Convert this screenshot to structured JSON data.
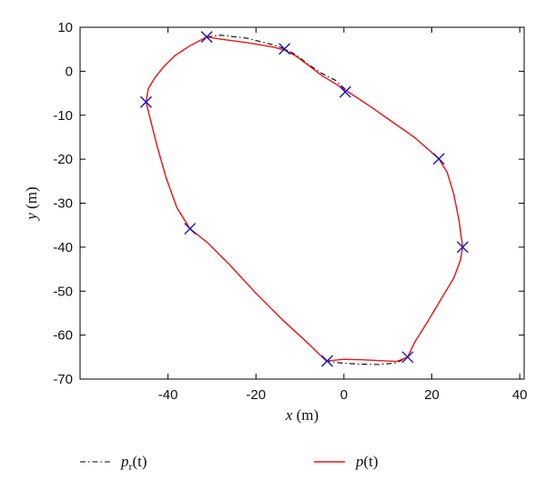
{
  "chart_data": {
    "type": "line",
    "xlabel_var": "x",
    "xlabel_unit": " (m)",
    "ylabel_var": "y",
    "ylabel_unit": " (m)",
    "xlim": [
      -60,
      41
    ],
    "ylim": [
      -70,
      10
    ],
    "xticks": [
      -40,
      -20,
      0,
      20,
      40
    ],
    "yticks": [
      10,
      0,
      -10,
      -20,
      -30,
      -40,
      -50,
      -60,
      -70
    ],
    "grid": false,
    "legend_position": "bottom",
    "series": [
      {
        "name": "p_r(t)",
        "name_main": "p",
        "name_sub": "r",
        "name_tail": "(t)",
        "style": "dash-dot",
        "color": "#000000",
        "x": [
          -31.2,
          -28,
          -22,
          -16,
          -13.5,
          -11,
          -8,
          -5,
          -2,
          1,
          6,
          11,
          16,
          21.6,
          23.5,
          25,
          26.2,
          27,
          26.5,
          25,
          22,
          19,
          16,
          14.5,
          12,
          8,
          4,
          0,
          -4,
          -8,
          -14,
          -20,
          -26,
          -31,
          -35,
          -38,
          -40.5,
          -42.5,
          -44,
          -45,
          -44.5,
          -43,
          -41,
          -38.5,
          -35,
          -31.2
        ],
        "y": [
          7.8,
          8.2,
          7.5,
          6,
          5.1,
          3.8,
          1.5,
          -0.5,
          -2,
          -4.7,
          -8,
          -11.5,
          -15,
          -19.9,
          -23,
          -28,
          -34,
          -40,
          -43,
          -47,
          -52,
          -57,
          -61.8,
          -65,
          -66.3,
          -66.7,
          -66.6,
          -66.4,
          -65.9,
          -62,
          -56.5,
          -50.5,
          -44,
          -39,
          -35.8,
          -31,
          -24,
          -17,
          -11,
          -7,
          -4,
          -1.5,
          1,
          3.5,
          5.8,
          7.8
        ]
      },
      {
        "name": "p(t)",
        "name_main": "p",
        "name_sub": "",
        "name_tail": "(t)",
        "style": "solid",
        "color": "#e8161b",
        "x": [
          -31.2,
          -28,
          -22,
          -16,
          -13.5,
          -11,
          -8,
          -5,
          -2,
          1,
          6,
          11,
          16,
          21.6,
          23.5,
          25,
          26.2,
          27,
          26.5,
          25,
          22,
          19,
          16,
          14.5,
          12,
          8,
          4,
          0,
          -4,
          -8,
          -14,
          -20,
          -26,
          -31,
          -35,
          -38,
          -40.5,
          -42.5,
          -44,
          -45,
          -44.5,
          -43,
          -41,
          -38.5,
          -35,
          -31.2
        ],
        "y": [
          7.8,
          7.3,
          6.5,
          5.5,
          4.8,
          3.5,
          1.3,
          -1,
          -2.8,
          -4.7,
          -8,
          -11.5,
          -15,
          -19.9,
          -23,
          -28,
          -34,
          -40,
          -43,
          -47,
          -52,
          -57,
          -61.8,
          -65,
          -66,
          -65.8,
          -65.6,
          -65.5,
          -65.9,
          -62,
          -56.5,
          -50.5,
          -44,
          -39,
          -35.8,
          -31,
          -24,
          -17,
          -11,
          -7,
          -4,
          -1.5,
          1,
          3.5,
          5.8,
          7.8
        ]
      }
    ],
    "markers": {
      "symbol": "x",
      "color": "#1515c8",
      "x": [
        -31.2,
        -13.5,
        0.3,
        21.6,
        27,
        14.5,
        -3.8,
        -35,
        -45
      ],
      "y": [
        7.8,
        5.1,
        -4.7,
        -19.9,
        -40,
        -65,
        -65.9,
        -35.8,
        -7
      ]
    }
  }
}
